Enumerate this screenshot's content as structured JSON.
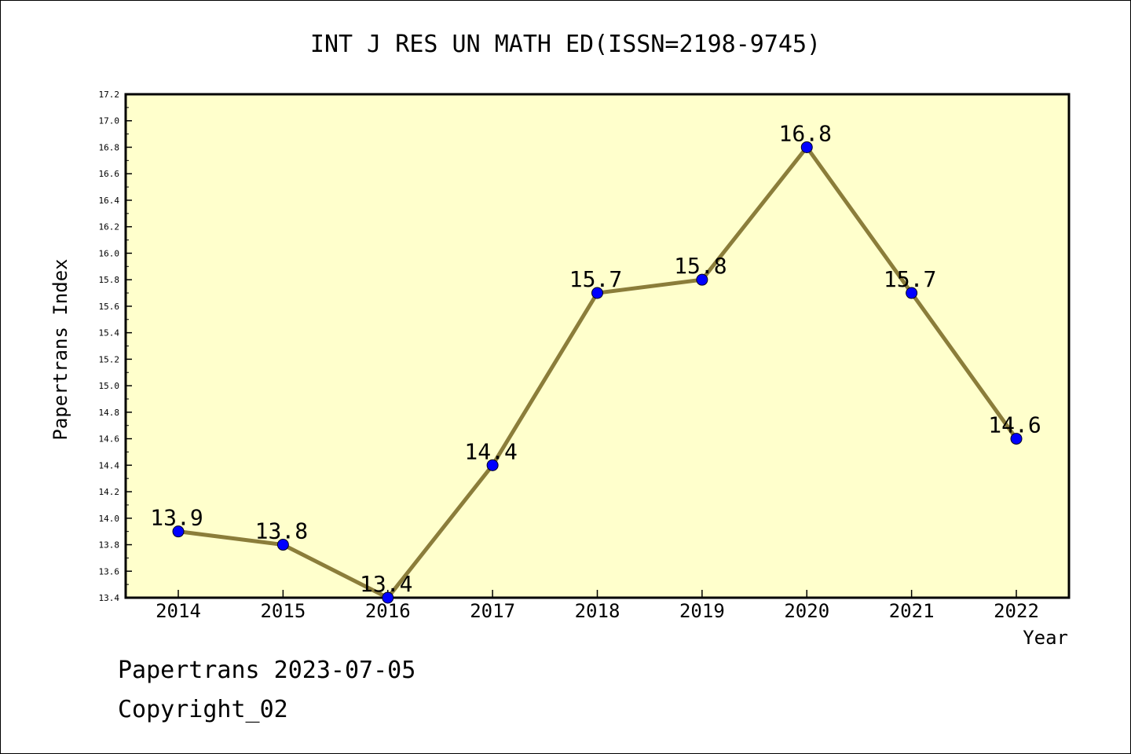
{
  "chart_data": {
    "type": "line",
    "title": "INT J RES UN MATH ED(ISSN=2198-9745)",
    "xlabel": "Year",
    "ylabel": "Papertrans Index",
    "categories": [
      "2014",
      "2015",
      "2016",
      "2017",
      "2018",
      "2019",
      "2020",
      "2021",
      "2022"
    ],
    "series": [
      {
        "values": [
          13.9,
          13.8,
          13.4,
          14.4,
          15.7,
          15.8,
          16.8,
          15.7,
          14.6
        ]
      }
    ],
    "data_labels": [
      "13.9",
      "13.8",
      "13.4",
      "14.4",
      "15.7",
      "15.8",
      "16.8",
      "15.7",
      "14.6"
    ],
    "ylim": [
      13.4,
      17.2
    ],
    "yticks": [
      "13.4",
      "13.6",
      "13.8",
      "14.0",
      "14.2",
      "14.4",
      "14.6",
      "14.8",
      "15.0",
      "15.2",
      "15.4",
      "15.6",
      "15.8",
      "16.0",
      "16.2",
      "16.4",
      "16.6",
      "16.8",
      "17.0",
      "17.2"
    ],
    "grid": false,
    "colors": {
      "plot_background": "#ffffcc",
      "line": "#8b7d3a",
      "marker": "#0000ff"
    }
  },
  "footer": {
    "line1": "Papertrans 2023-07-05",
    "line2": "Copyright_02"
  }
}
